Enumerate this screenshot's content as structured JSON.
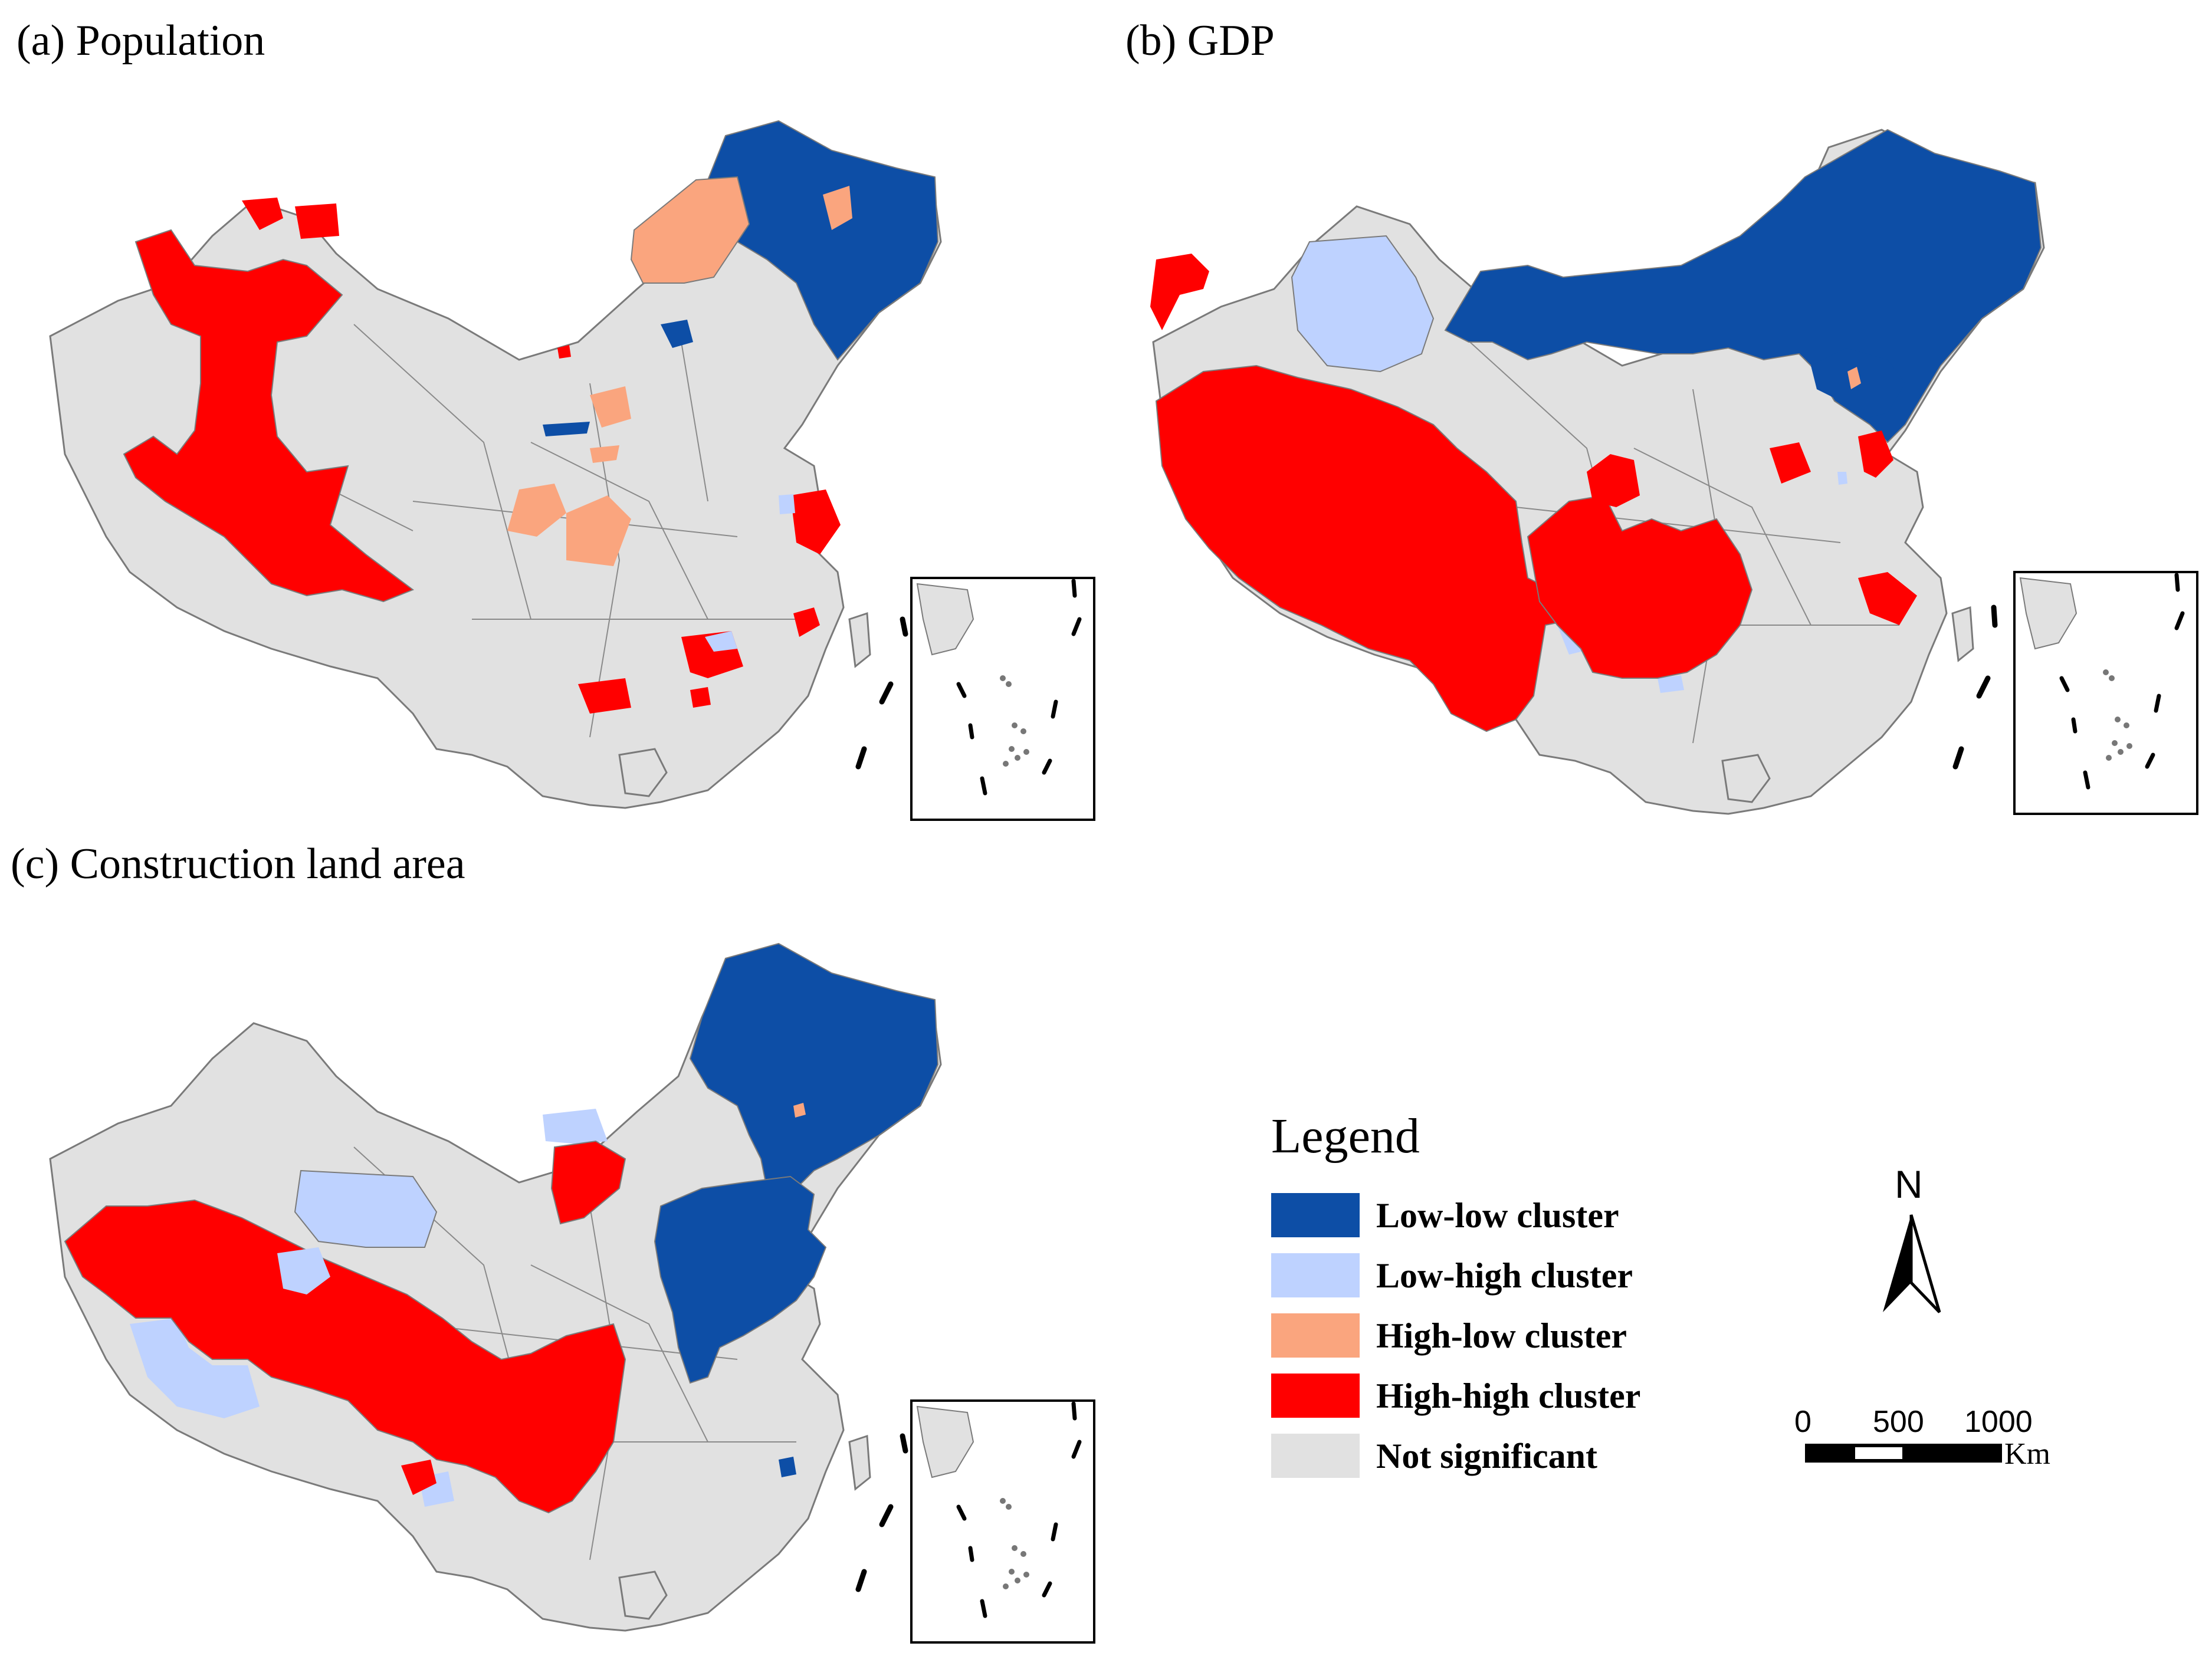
{
  "panels": [
    {
      "id": "a",
      "title": "(a) Population"
    },
    {
      "id": "b",
      "title": "(b) GDP"
    },
    {
      "id": "c",
      "title": "(c) Construction land area"
    }
  ],
  "legend": {
    "title": "Legend",
    "items": [
      {
        "label": "Low-low cluster",
        "color": "#0D4EA6"
      },
      {
        "label": "Low-high cluster",
        "color": "#BED2FF"
      },
      {
        "label": "High-low cluster",
        "color": "#FAA57E"
      },
      {
        "label": "High-high cluster",
        "color": "#FF0000"
      },
      {
        "label": "Not significant",
        "color": "#E1E1E1"
      }
    ]
  },
  "north_arrow": {
    "label": "N"
  },
  "scale_bar": {
    "ticks": [
      "0",
      "500",
      "1000"
    ],
    "unit": "Km"
  },
  "colors": {
    "boundary": "#7a7a7a",
    "inset_frame": "#000000",
    "not_significant": "#E1E1E1"
  }
}
